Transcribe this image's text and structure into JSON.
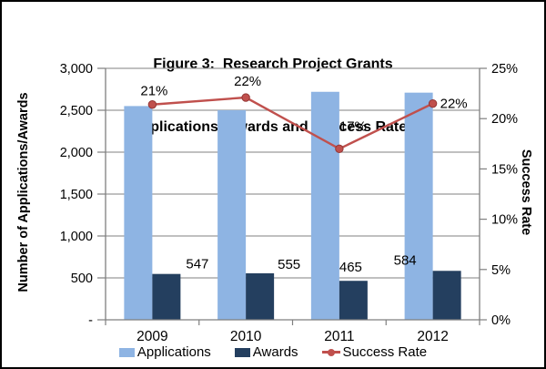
{
  "figure": {
    "title_line1": "Figure 3:  Research Project Grants",
    "title_line2": "Applications, Awards and Success Rates"
  },
  "chart_data": {
    "type": "combo-bar-line",
    "categories": [
      "2009",
      "2010",
      "2011",
      "2012"
    ],
    "series": [
      {
        "name": "Applications",
        "type": "bar",
        "axis": "left",
        "color": "#8EB4E3",
        "values": [
          2550,
          2500,
          2720,
          2710
        ]
      },
      {
        "name": "Awards",
        "type": "bar",
        "axis": "left",
        "color": "#243F5F",
        "values": [
          547,
          555,
          465,
          584
        ],
        "data_labels": [
          "547",
          "555",
          "465",
          "584"
        ],
        "label_offsets": [
          {
            "dx": 34,
            "dy": -6
          },
          {
            "dx": 32,
            "dy": -5
          },
          {
            "dx": -3,
            "dy": -10
          },
          {
            "dx": -46,
            "dy": -7
          }
        ]
      },
      {
        "name": "Success Rate",
        "type": "line",
        "axis": "right",
        "color": "#C0504D",
        "marker_stroke": "#943634",
        "values": [
          21.4,
          22.1,
          17.0,
          21.5
        ],
        "data_labels": [
          "21%",
          "22%",
          "17%",
          "22%"
        ],
        "label_offsets": [
          {
            "dx": 2,
            "dy": -10
          },
          {
            "dx": 2,
            "dy": -13
          },
          {
            "dx": 15,
            "dy": -20
          },
          {
            "dx": 23,
            "dy": 5
          }
        ]
      }
    ],
    "left_axis": {
      "title": "Number of Applications/Awards",
      "min": 0,
      "max": 3000,
      "step": 500,
      "tick_labels": [
        "3,000",
        "2,500",
        "2,000",
        "1,500",
        "1,000",
        "500",
        "-"
      ]
    },
    "right_axis": {
      "title": "Success Rate",
      "min": 0,
      "max": 25,
      "step": 5,
      "tick_labels": [
        "0%",
        "5%",
        "10%",
        "15%",
        "20%",
        "25%"
      ]
    },
    "grid": true,
    "legend_position": "bottom"
  },
  "colors": {
    "grid": "#9B9B9B",
    "axis": "#7F7F7F",
    "text": "#000000",
    "background": "#FFFFFF",
    "border": "#000000"
  }
}
